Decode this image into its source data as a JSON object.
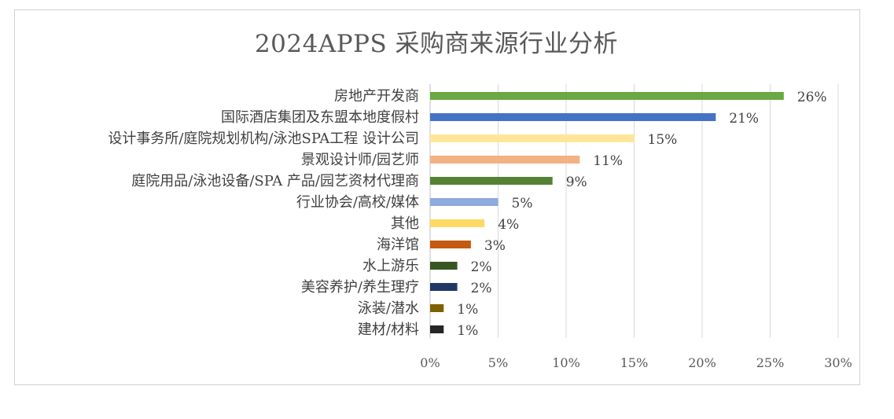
{
  "chart_data": {
    "type": "bar",
    "orientation": "horizontal",
    "title": "2024APPS 采购商来源行业分析",
    "categories": [
      "房地产开发商",
      "国际酒店集团及东盟本地度假村",
      "设计事务所/庭院规划机构/泳池SPA工程 设计公司",
      "景观设计师/园艺师",
      "庭院用品/泳池设备/SPA 产品/园艺资材代理商",
      "行业协会/高校/媒体",
      "其他",
      "海洋馆",
      "水上游乐",
      "美容养护/养生理疗",
      "泳装/潜水",
      "建材/材料"
    ],
    "values": [
      26,
      21,
      15,
      11,
      9,
      5,
      4,
      3,
      2,
      2,
      1,
      1
    ],
    "value_labels": [
      "26%",
      "21%",
      "15%",
      "11%",
      "9%",
      "5%",
      "4%",
      "3%",
      "2%",
      "2%",
      "1%",
      "1%"
    ],
    "colors": [
      "#6aa843",
      "#4472c4",
      "#ffe699",
      "#f4b183",
      "#548235",
      "#8faadc",
      "#ffd966",
      "#c55a11",
      "#375623",
      "#1f3864",
      "#7f6000",
      "#262626"
    ],
    "xlim": [
      0,
      30
    ],
    "x_ticks": [
      0,
      5,
      10,
      15,
      20,
      25,
      30
    ],
    "x_tick_labels": [
      "0%",
      "5%",
      "10%",
      "15%",
      "20%",
      "25%",
      "30%"
    ],
    "grid": true,
    "legend": "none"
  }
}
